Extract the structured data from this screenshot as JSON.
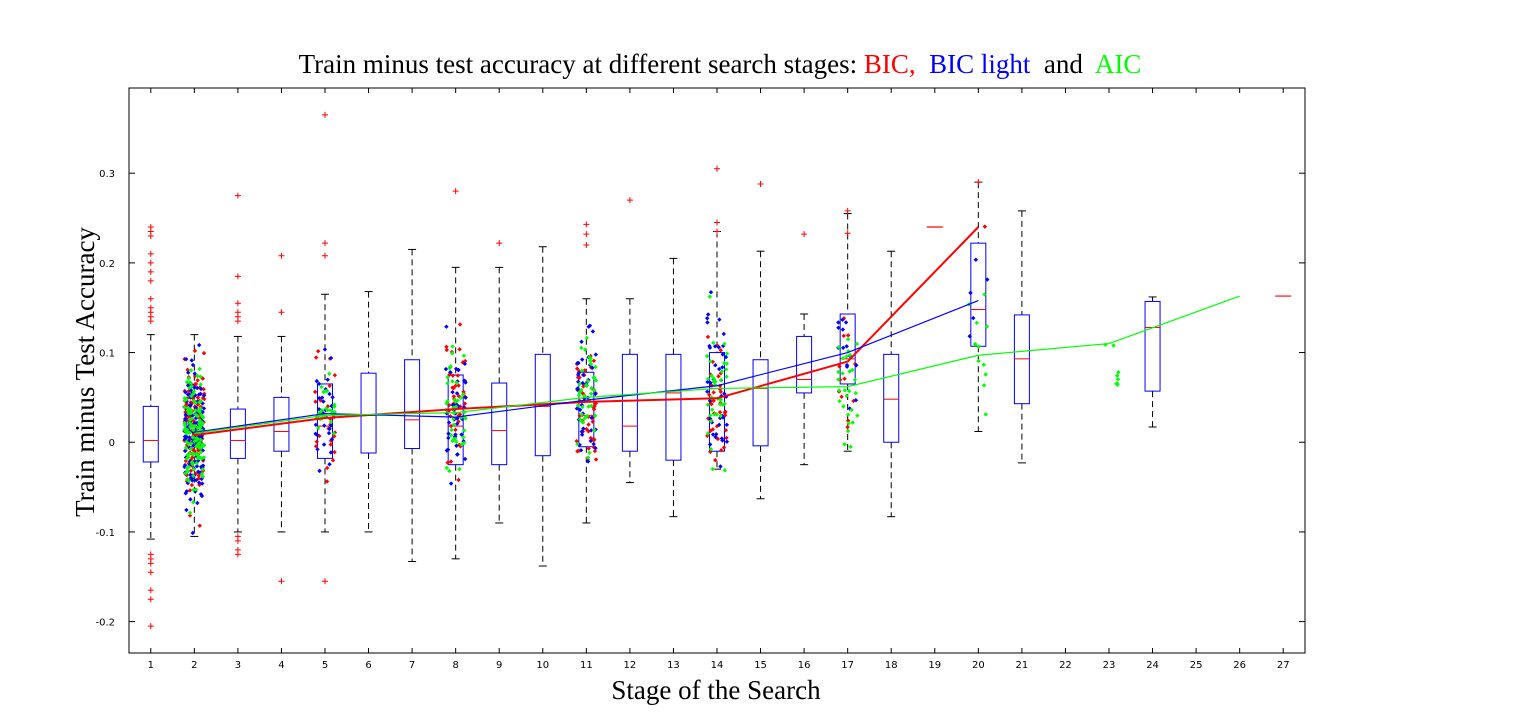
{
  "chart_data": {
    "type": "box",
    "title_parts": [
      {
        "text": "Train minus test accuracy at different search stages: ",
        "color": "#000000"
      },
      {
        "text": "BIC,",
        "color": "#ff0000"
      },
      {
        "text": "  BIC light",
        "color": "#0000ff"
      },
      {
        "text": "  and  ",
        "color": "#000000"
      },
      {
        "text": "AIC",
        "color": "#00ff00"
      }
    ],
    "xlabel": "Stage of the Search",
    "ylabel": "Train minus Test Accuracy",
    "xlim": [
      0.5,
      27.5
    ],
    "ylim": [
      -0.235,
      0.395
    ],
    "x_ticks": [
      1,
      2,
      3,
      4,
      5,
      6,
      7,
      8,
      9,
      10,
      11,
      12,
      13,
      14,
      15,
      16,
      17,
      18,
      19,
      20,
      21,
      22,
      23,
      24,
      25,
      26,
      27
    ],
    "y_ticks": [
      -0.2,
      -0.1,
      0,
      0.1,
      0.2,
      0.3
    ],
    "y_tick_labels": [
      "-0.2",
      "-0.1",
      "0",
      "0.1",
      "0.2",
      "0.3"
    ],
    "colors": {
      "bic": "#ff0000",
      "bic_light": "#0000ff",
      "aic": "#00ff00",
      "box": "#0000ff",
      "median": "#ff0000",
      "whisker": "#000000"
    },
    "boxes": [
      {
        "x": 1,
        "q1": -0.022,
        "median": 0.002,
        "q3": 0.04,
        "lo": -0.108,
        "hi": 0.12
      },
      {
        "x": 2,
        "q1": -0.005,
        "median": 0.005,
        "q3": 0.03,
        "lo": -0.105,
        "hi": 0.12
      },
      {
        "x": 3,
        "q1": -0.018,
        "median": 0.002,
        "q3": 0.037,
        "lo": -0.1,
        "hi": 0.118
      },
      {
        "x": 4,
        "q1": -0.01,
        "median": 0.012,
        "q3": 0.05,
        "lo": -0.1,
        "hi": 0.118
      },
      {
        "x": 5,
        "q1": -0.018,
        "median": 0.018,
        "q3": 0.065,
        "lo": -0.1,
        "hi": 0.165
      },
      {
        "x": 6,
        "q1": -0.012,
        "median": 0.03,
        "q3": 0.077,
        "lo": -0.1,
        "hi": 0.168
      },
      {
        "x": 7,
        "q1": -0.007,
        "median": 0.025,
        "q3": 0.092,
        "lo": -0.133,
        "hi": 0.215
      },
      {
        "x": 8,
        "q1": -0.025,
        "median": 0.018,
        "q3": 0.075,
        "lo": -0.13,
        "hi": 0.195
      },
      {
        "x": 9,
        "q1": -0.025,
        "median": 0.013,
        "q3": 0.066,
        "lo": -0.09,
        "hi": 0.195
      },
      {
        "x": 10,
        "q1": -0.015,
        "median": 0.04,
        "q3": 0.098,
        "lo": -0.138,
        "hi": 0.218
      },
      {
        "x": 11,
        "q1": -0.005,
        "median": 0.03,
        "q3": 0.078,
        "lo": -0.09,
        "hi": 0.16
      },
      {
        "x": 12,
        "q1": -0.01,
        "median": 0.018,
        "q3": 0.098,
        "lo": -0.045,
        "hi": 0.16
      },
      {
        "x": 13,
        "q1": -0.02,
        "median": 0.055,
        "q3": 0.098,
        "lo": -0.083,
        "hi": 0.205
      },
      {
        "x": 14,
        "q1": -0.01,
        "median": 0.06,
        "q3": 0.1,
        "lo": -0.03,
        "hi": 0.235
      },
      {
        "x": 15,
        "q1": -0.004,
        "median": 0.06,
        "q3": 0.092,
        "lo": -0.063,
        "hi": 0.213
      },
      {
        "x": 16,
        "q1": 0.055,
        "median": 0.07,
        "q3": 0.118,
        "lo": -0.025,
        "hi": 0.143
      },
      {
        "x": 17,
        "q1": 0.065,
        "median": 0.093,
        "q3": 0.143,
        "lo": -0.01,
        "hi": 0.255
      },
      {
        "x": 18,
        "q1": 0.0,
        "median": 0.048,
        "q3": 0.098,
        "lo": -0.083,
        "hi": 0.213
      },
      {
        "x": 20,
        "q1": 0.107,
        "median": 0.148,
        "q3": 0.222,
        "lo": 0.012,
        "hi": 0.29
      },
      {
        "x": 21,
        "q1": 0.043,
        "median": 0.093,
        "q3": 0.142,
        "lo": -0.023,
        "hi": 0.258
      },
      {
        "x": 24,
        "q1": 0.057,
        "median": 0.128,
        "q3": 0.157,
        "lo": 0.017,
        "hi": 0.162
      }
    ],
    "series": [
      {
        "name": "BIC",
        "x": [
          2,
          5,
          8,
          11,
          14,
          17,
          20
        ],
        "y": [
          0.008,
          0.027,
          0.037,
          0.045,
          0.049,
          0.09,
          0.24
        ]
      },
      {
        "name": "BIC light",
        "x": [
          2,
          5,
          8,
          11,
          14,
          17,
          20
        ],
        "y": [
          0.011,
          0.032,
          0.028,
          0.047,
          0.063,
          0.1,
          0.158
        ]
      },
      {
        "name": "AIC",
        "x": [
          2,
          5,
          8,
          11,
          14,
          17,
          20,
          23,
          26
        ],
        "y": [
          0.01,
          0.03,
          0.033,
          0.05,
          0.06,
          0.062,
          0.097,
          0.11,
          0.163
        ]
      }
    ],
    "outliers": [
      {
        "x": 1,
        "y": [
          0.24,
          0.235,
          0.23,
          0.21,
          0.2,
          0.19,
          0.18,
          0.16,
          0.15,
          0.145,
          0.14,
          0.135,
          -0.125,
          -0.13,
          -0.135,
          -0.145,
          -0.165,
          -0.175,
          -0.205
        ]
      },
      {
        "x": 3,
        "y": [
          0.275,
          0.185,
          0.155,
          0.145,
          0.14,
          0.135,
          -0.105,
          -0.11,
          -0.12,
          -0.125
        ]
      },
      {
        "x": 4,
        "y": [
          0.208,
          0.145,
          -0.155
        ]
      },
      {
        "x": 5,
        "y": [
          0.365,
          0.222,
          0.208,
          -0.155
        ]
      },
      {
        "x": 8,
        "y": [
          0.28
        ]
      },
      {
        "x": 9,
        "y": [
          0.222
        ]
      },
      {
        "x": 11,
        "y": [
          0.243,
          0.232,
          0.22
        ]
      },
      {
        "x": 12,
        "y": [
          0.27
        ]
      },
      {
        "x": 14,
        "y": [
          0.305,
          0.245,
          0.235
        ]
      },
      {
        "x": 15,
        "y": [
          0.288
        ]
      },
      {
        "x": 16,
        "y": [
          0.232
        ]
      },
      {
        "x": 17,
        "y": [
          0.258,
          0.233
        ]
      },
      {
        "x": 19,
        "y": [
          0.24
        ]
      },
      {
        "x": 20,
        "y": [
          0.29
        ]
      },
      {
        "x": 27,
        "y": [
          0.163
        ]
      }
    ],
    "point_clusters": [
      {
        "x": 2,
        "bic": {
          "center": 0.01,
          "spread": 0.075,
          "count": 140
        },
        "bic_light": {
          "center": 0.012,
          "spread": 0.075,
          "count": 140
        },
        "aic": {
          "center": 0.01,
          "spread": 0.065,
          "count": 120
        }
      },
      {
        "x": 5,
        "bic": {
          "center": 0.028,
          "spread": 0.06,
          "count": 28
        },
        "bic_light": {
          "center": 0.03,
          "spread": 0.065,
          "count": 30
        },
        "aic": {
          "center": 0.03,
          "spread": 0.05,
          "count": 25
        }
      },
      {
        "x": 8,
        "bic": {
          "center": 0.035,
          "spread": 0.075,
          "count": 45
        },
        "bic_light": {
          "center": 0.03,
          "spread": 0.07,
          "count": 42
        },
        "aic": {
          "center": 0.033,
          "spread": 0.075,
          "count": 40
        }
      },
      {
        "x": 11,
        "bic": {
          "center": 0.045,
          "spread": 0.07,
          "count": 45
        },
        "bic_light": {
          "center": 0.045,
          "spread": 0.07,
          "count": 42
        },
        "aic": {
          "center": 0.05,
          "spread": 0.065,
          "count": 40
        }
      },
      {
        "x": 14,
        "bic": {
          "center": 0.05,
          "spread": 0.065,
          "count": 38
        },
        "bic_light": {
          "center": 0.06,
          "spread": 0.07,
          "count": 40
        },
        "aic": {
          "center": 0.06,
          "spread": 0.07,
          "count": 38
        }
      },
      {
        "x": 17,
        "bic": {
          "center": 0.09,
          "spread": 0.06,
          "count": 12
        },
        "bic_light": {
          "center": 0.1,
          "spread": 0.06,
          "count": 14
        },
        "aic": {
          "center": 0.06,
          "spread": 0.07,
          "count": 28
        }
      },
      {
        "x": 20,
        "bic": {
          "center": 0.24,
          "spread": 0.005,
          "count": 1
        },
        "bic_light": {
          "center": 0.15,
          "spread": 0.07,
          "count": 5
        },
        "aic": {
          "center": 0.1,
          "spread": 0.07,
          "count": 12
        }
      },
      {
        "x": 23,
        "bic": {
          "center": 0,
          "spread": 0,
          "count": 0
        },
        "bic_light": {
          "center": 0,
          "spread": 0,
          "count": 0
        },
        "aic": {
          "center": 0.1,
          "spread": 0.05,
          "count": 8
        }
      }
    ]
  }
}
